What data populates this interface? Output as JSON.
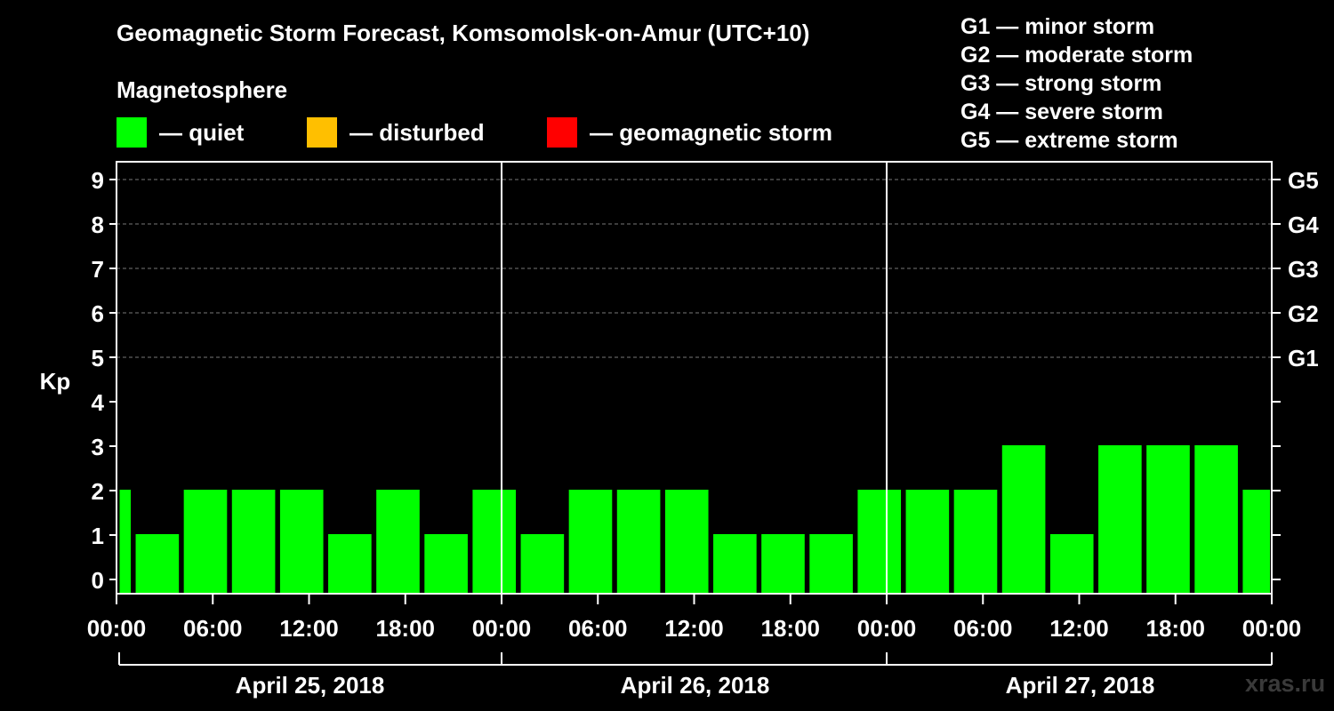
{
  "title": "Geomagnetic Storm Forecast, Komsomolsk-on-Amur (UTC+10)",
  "subtitle": "Magnetosphere",
  "legend": [
    {
      "label": "— quiet",
      "color": "#00ff00"
    },
    {
      "label": "— disturbed",
      "color": "#ffbf00"
    },
    {
      "label": "— geomagnetic storm",
      "color": "#ff0000"
    }
  ],
  "g_scale": [
    "G1 — minor storm",
    "G2 — moderate storm",
    "G3 — strong storm",
    "G4 — severe storm",
    "G5 — extreme storm"
  ],
  "watermark": "xras.ru",
  "chart_data": {
    "type": "bar",
    "title": "Geomagnetic Storm Forecast, Komsomolsk-on-Amur (UTC+10)",
    "ylabel": "Kp",
    "xlabel": "",
    "ylim": [
      0,
      9
    ],
    "yticks": [
      "0",
      "1",
      "2",
      "3",
      "4",
      "5",
      "6",
      "7",
      "8",
      "9"
    ],
    "right_ticks": [
      {
        "value": 5,
        "label": "G1"
      },
      {
        "value": 6,
        "label": "G2"
      },
      {
        "value": 7,
        "label": "G3"
      },
      {
        "value": 8,
        "label": "G4"
      },
      {
        "value": 9,
        "label": "G5"
      }
    ],
    "time_range_hours": [
      0,
      72
    ],
    "xticks": [
      {
        "hour": 0,
        "label": "00:00"
      },
      {
        "hour": 6,
        "label": "06:00"
      },
      {
        "hour": 12,
        "label": "12:00"
      },
      {
        "hour": 18,
        "label": "18:00"
      },
      {
        "hour": 24,
        "label": "00:00"
      },
      {
        "hour": 30,
        "label": "06:00"
      },
      {
        "hour": 36,
        "label": "12:00"
      },
      {
        "hour": 42,
        "label": "18:00"
      },
      {
        "hour": 48,
        "label": "00:00"
      },
      {
        "hour": 54,
        "label": "06:00"
      },
      {
        "hour": 60,
        "label": "12:00"
      },
      {
        "hour": 66,
        "label": "18:00"
      },
      {
        "hour": 72,
        "label": "00:00"
      }
    ],
    "days": [
      {
        "label": "April 25, 2018",
        "start_hour": 0,
        "end_hour": 24
      },
      {
        "label": "April 26, 2018",
        "start_hour": 24,
        "end_hour": 48
      },
      {
        "label": "April 27, 2018",
        "start_hour": 48,
        "end_hour": 72
      }
    ],
    "bars": [
      {
        "start_hour": 0,
        "end_hour": 1,
        "kp": 2,
        "level": "quiet"
      },
      {
        "start_hour": 1,
        "end_hour": 4,
        "kp": 1,
        "level": "quiet"
      },
      {
        "start_hour": 4,
        "end_hour": 7,
        "kp": 2,
        "level": "quiet"
      },
      {
        "start_hour": 7,
        "end_hour": 10,
        "kp": 2,
        "level": "quiet"
      },
      {
        "start_hour": 10,
        "end_hour": 13,
        "kp": 2,
        "level": "quiet"
      },
      {
        "start_hour": 13,
        "end_hour": 16,
        "kp": 1,
        "level": "quiet"
      },
      {
        "start_hour": 16,
        "end_hour": 19,
        "kp": 2,
        "level": "quiet"
      },
      {
        "start_hour": 19,
        "end_hour": 22,
        "kp": 1,
        "level": "quiet"
      },
      {
        "start_hour": 22,
        "end_hour": 25,
        "kp": 2,
        "level": "quiet"
      },
      {
        "start_hour": 25,
        "end_hour": 28,
        "kp": 1,
        "level": "quiet"
      },
      {
        "start_hour": 28,
        "end_hour": 31,
        "kp": 2,
        "level": "quiet"
      },
      {
        "start_hour": 31,
        "end_hour": 34,
        "kp": 2,
        "level": "quiet"
      },
      {
        "start_hour": 34,
        "end_hour": 37,
        "kp": 2,
        "level": "quiet"
      },
      {
        "start_hour": 37,
        "end_hour": 40,
        "kp": 1,
        "level": "quiet"
      },
      {
        "start_hour": 40,
        "end_hour": 43,
        "kp": 1,
        "level": "quiet"
      },
      {
        "start_hour": 43,
        "end_hour": 46,
        "kp": 1,
        "level": "quiet"
      },
      {
        "start_hour": 46,
        "end_hour": 49,
        "kp": 2,
        "level": "quiet"
      },
      {
        "start_hour": 49,
        "end_hour": 52,
        "kp": 2,
        "level": "quiet"
      },
      {
        "start_hour": 52,
        "end_hour": 55,
        "kp": 2,
        "level": "quiet"
      },
      {
        "start_hour": 55,
        "end_hour": 58,
        "kp": 3,
        "level": "quiet"
      },
      {
        "start_hour": 58,
        "end_hour": 61,
        "kp": 1,
        "level": "quiet"
      },
      {
        "start_hour": 61,
        "end_hour": 64,
        "kp": 3,
        "level": "quiet"
      },
      {
        "start_hour": 64,
        "end_hour": 67,
        "kp": 3,
        "level": "quiet"
      },
      {
        "start_hour": 67,
        "end_hour": 70,
        "kp": 3,
        "level": "quiet"
      },
      {
        "start_hour": 70,
        "end_hour": 72,
        "kp": 2,
        "level": "quiet"
      }
    ],
    "level_colors": {
      "quiet": "#00ff00",
      "disturbed": "#ffbf00",
      "storm": "#ff0000"
    }
  }
}
